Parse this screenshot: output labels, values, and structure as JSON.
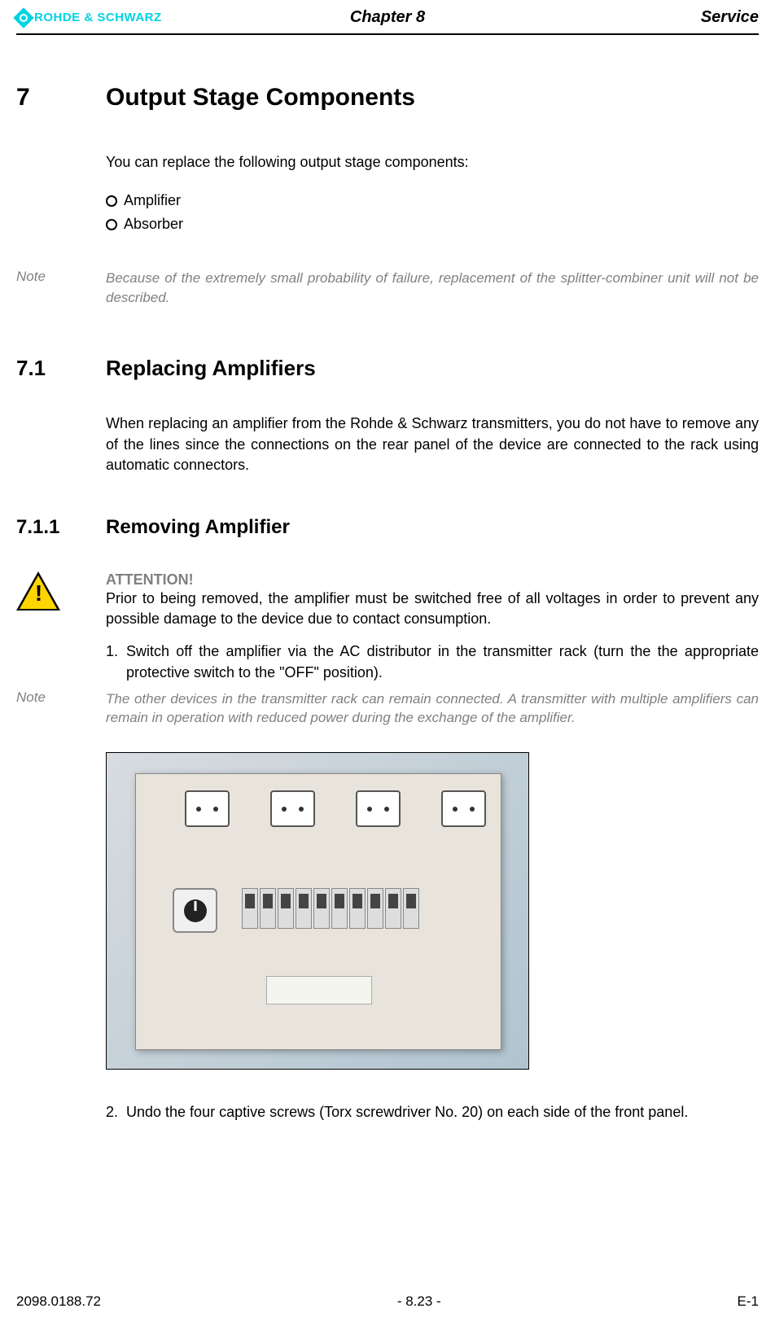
{
  "header": {
    "logo_text": "ROHDE & SCHWARZ",
    "chapter": "Chapter 8",
    "section": "Service"
  },
  "section7": {
    "number": "7",
    "title": "Output Stage Components",
    "intro": "You can replace the following output stage components:",
    "bullets": [
      "Amplifier",
      "Absorber"
    ]
  },
  "note1": {
    "label": "Note",
    "text": "Because of the extremely small probability of failure, replacement of the splitter-combiner unit will not be described."
  },
  "section71": {
    "number": "7.1",
    "title": "Replacing Amplifiers",
    "text": "When replacing an amplifier from the Rohde & Schwarz transmitters, you do not have to remove any of the lines since the connections on the rear panel of the device are connected to the rack using automatic connectors."
  },
  "section711": {
    "number": "7.1.1",
    "title": "Removing Amplifier"
  },
  "attention": {
    "title": "ATTENTION!",
    "text": "Prior to being removed, the amplifier must be switched free of all voltages in order to prevent any possible damage to the device due to contact consumption."
  },
  "steps": {
    "step1_num": "1.",
    "step1": "Switch off the amplifier via the AC distributor in the transmitter rack (turn the the appropriate protective switch to the \"OFF\" position).",
    "step2_num": "2.",
    "step2": "Undo the four captive screws (Torx screwdriver No. 20) on each side of the front panel."
  },
  "note2": {
    "label": "Note",
    "text": "The other devices in the transmitter rack can remain connected. A transmitter with multiple amplifiers can remain in operation with reduced power during the exchange of the amplifier."
  },
  "footer": {
    "left": "2098.0188.72",
    "center": "- 8.23 -",
    "right": "E-1"
  },
  "colors": {
    "logo": "#00d4e0",
    "note_gray": "#808080",
    "attention_yellow": "#ffd500",
    "text": "#000000",
    "background": "#ffffff"
  },
  "typography": {
    "body_fontsize": 18,
    "heading1_fontsize": 30,
    "heading2_fontsize": 26,
    "heading3_fontsize": 24,
    "footer_fontsize": 17
  }
}
